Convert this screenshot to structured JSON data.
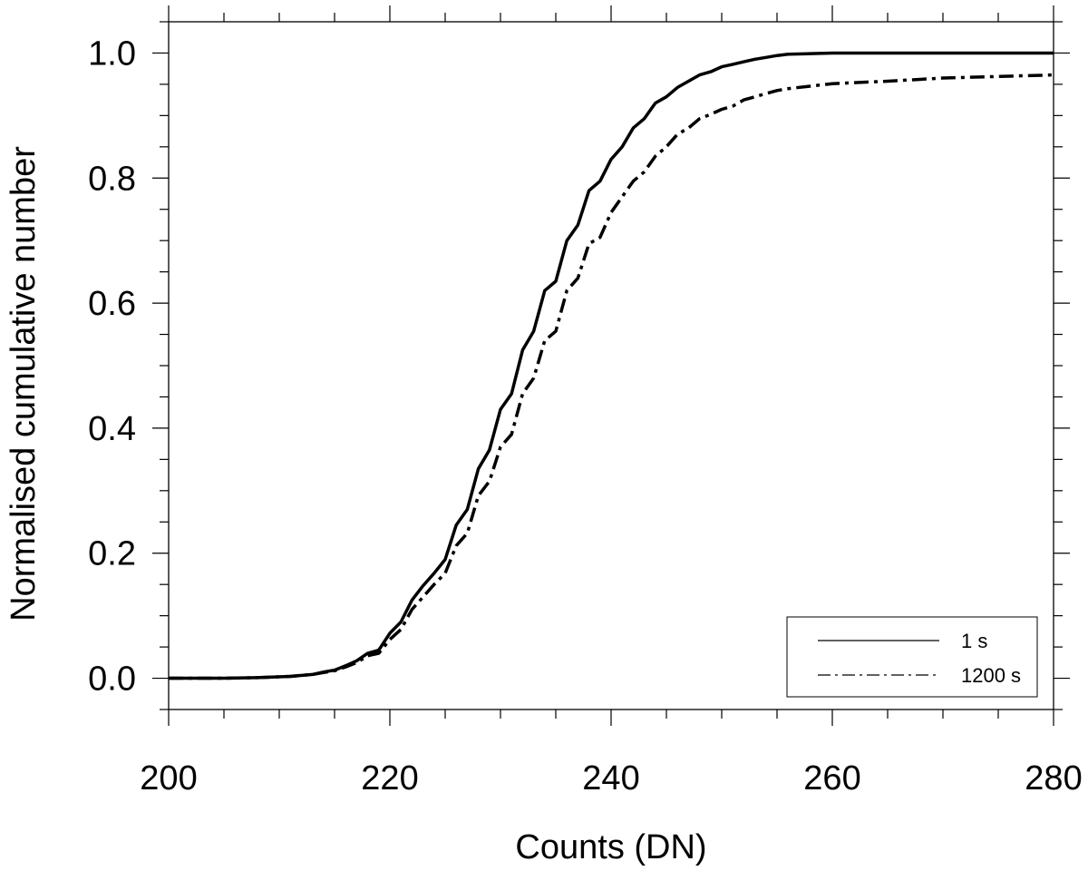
{
  "chart_data": {
    "type": "line",
    "title": "",
    "xlabel": "Counts (DN)",
    "ylabel": "Normalised cumulative number",
    "xlim": [
      200,
      280
    ],
    "ylim": [
      -0.05,
      1.05
    ],
    "x_ticks": [
      200,
      220,
      240,
      260,
      280
    ],
    "x_tick_labels": [
      "200",
      "220",
      "240",
      "260",
      "280"
    ],
    "y_ticks": [
      0.0,
      0.2,
      0.4,
      0.6,
      0.8,
      1.0
    ],
    "y_tick_labels": [
      "0.0",
      "0.2",
      "0.4",
      "0.6",
      "0.8",
      "1.0"
    ],
    "x_minor_step": 5,
    "y_minor_step": 0.05,
    "grid": false,
    "legend_position": "bottom-right",
    "series": [
      {
        "name": "1 s",
        "style": "solid",
        "x": [
          200,
          205,
          208,
          211,
          213,
          214,
          215,
          216,
          217,
          218,
          219,
          220,
          221,
          222,
          223,
          224,
          225,
          226,
          227,
          228,
          229,
          230,
          231,
          232,
          233,
          234,
          235,
          236,
          237,
          238,
          239,
          240,
          241,
          242,
          243,
          244,
          245,
          246,
          247,
          248,
          249,
          250,
          251,
          252,
          253,
          254,
          255,
          256,
          258,
          260,
          265,
          270,
          280
        ],
        "y": [
          0.0,
          0.0,
          0.001,
          0.003,
          0.006,
          0.01,
          0.013,
          0.02,
          0.028,
          0.04,
          0.045,
          0.072,
          0.09,
          0.125,
          0.148,
          0.168,
          0.19,
          0.245,
          0.27,
          0.335,
          0.365,
          0.43,
          0.455,
          0.525,
          0.555,
          0.62,
          0.635,
          0.7,
          0.725,
          0.78,
          0.795,
          0.83,
          0.85,
          0.88,
          0.895,
          0.92,
          0.93,
          0.945,
          0.955,
          0.965,
          0.97,
          0.978,
          0.982,
          0.986,
          0.99,
          0.993,
          0.996,
          0.998,
          0.999,
          1.0,
          1.0,
          1.0,
          1.0
        ]
      },
      {
        "name": "1200 s",
        "style": "dashdot",
        "x": [
          200,
          205,
          208,
          211,
          213,
          214,
          215,
          216,
          217,
          218,
          219,
          220,
          221,
          222,
          223,
          224,
          225,
          226,
          227,
          228,
          229,
          230,
          231,
          232,
          233,
          234,
          235,
          236,
          237,
          238,
          239,
          240,
          241,
          242,
          243,
          244,
          245,
          246,
          247,
          248,
          249,
          250,
          251,
          252,
          253,
          254,
          255,
          256,
          258,
          260,
          265,
          270,
          280
        ],
        "y": [
          0.0,
          0.0,
          0.001,
          0.003,
          0.006,
          0.009,
          0.012,
          0.018,
          0.025,
          0.036,
          0.04,
          0.062,
          0.078,
          0.11,
          0.13,
          0.15,
          0.168,
          0.212,
          0.232,
          0.292,
          0.315,
          0.37,
          0.39,
          0.455,
          0.48,
          0.54,
          0.555,
          0.62,
          0.64,
          0.695,
          0.705,
          0.745,
          0.77,
          0.795,
          0.81,
          0.835,
          0.85,
          0.87,
          0.88,
          0.895,
          0.902,
          0.91,
          0.915,
          0.925,
          0.93,
          0.935,
          0.94,
          0.943,
          0.947,
          0.951,
          0.955,
          0.96,
          0.965
        ]
      }
    ]
  }
}
